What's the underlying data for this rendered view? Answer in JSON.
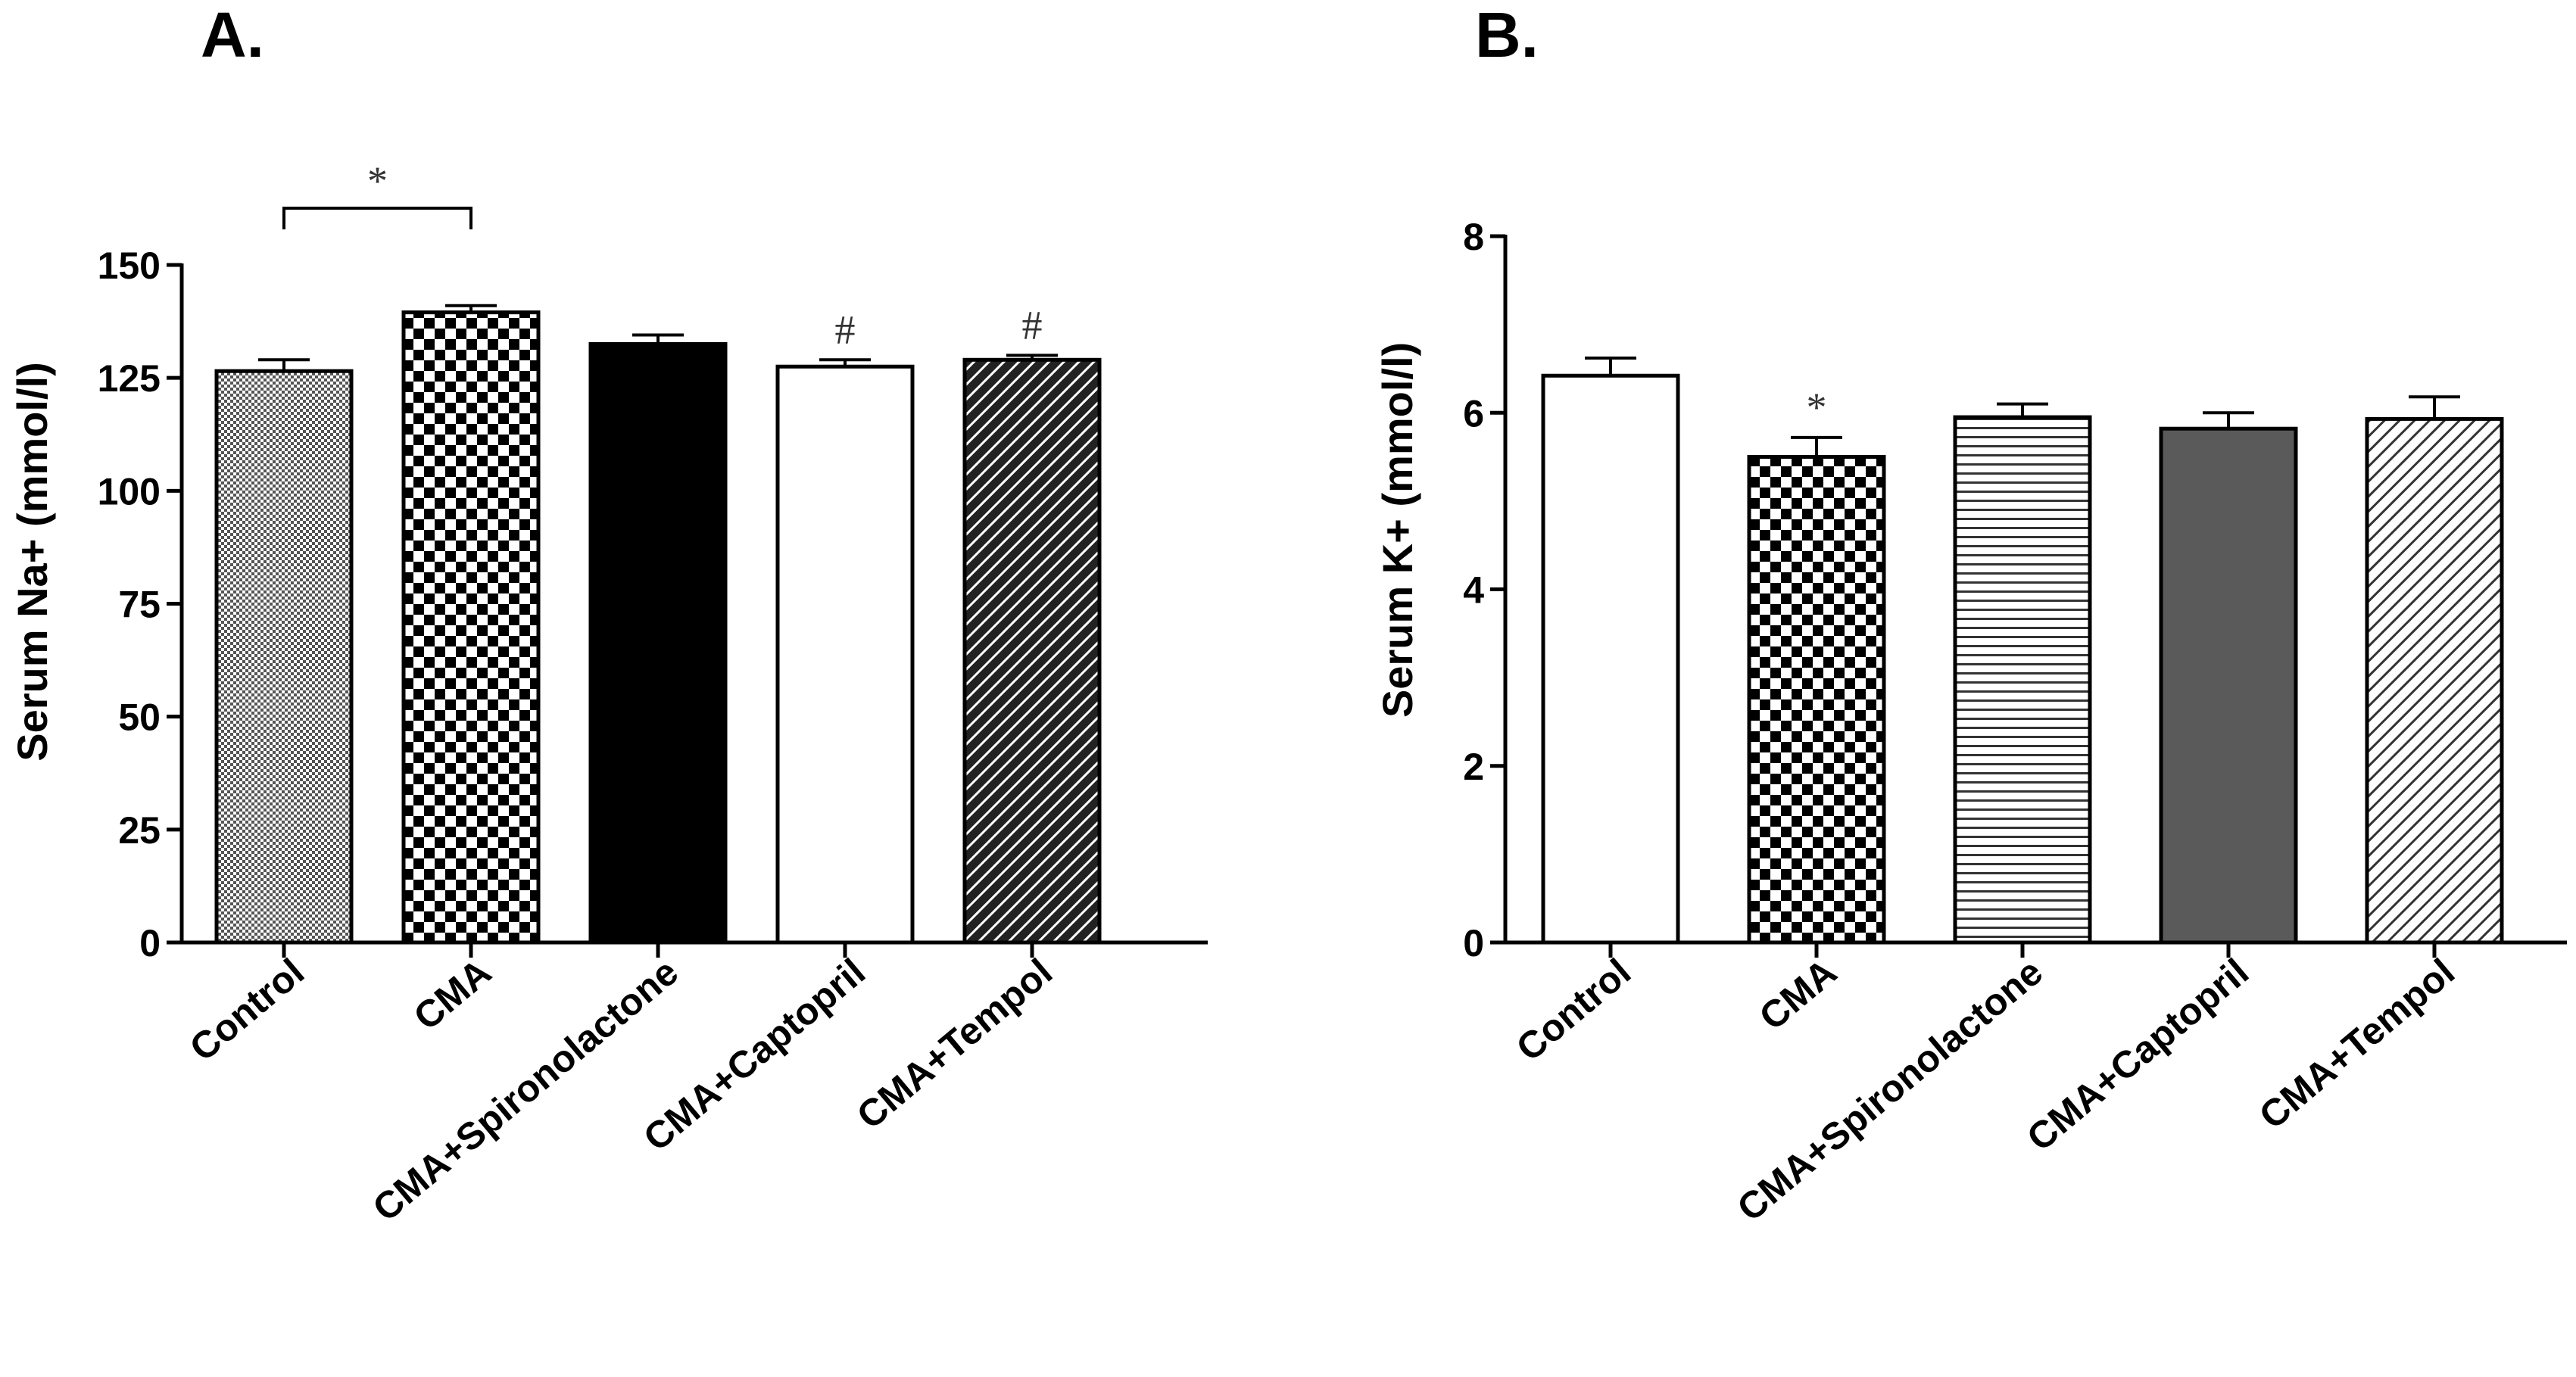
{
  "chart_data": [
    {
      "panel": "A.",
      "type": "bar",
      "ylabel": "Serum Na+ (mmol/l)",
      "ylim": [
        0,
        150
      ],
      "yticks": [
        0,
        25,
        50,
        75,
        100,
        125,
        150
      ],
      "categories": [
        "Control",
        "CMA",
        "CMA+Spironolactone",
        "CMA+Captopril",
        "CMA+Tempol"
      ],
      "values": [
        126.5,
        139.5,
        132.5,
        127.5,
        129.0
      ],
      "errors": [
        2.5,
        1.5,
        2.0,
        1.5,
        1.0
      ],
      "fills": [
        "dots",
        "checker",
        "solid-black",
        "white",
        "diag-dark"
      ],
      "annotations": [
        {
          "type": "bracket",
          "from": 0,
          "to": 1,
          "text": "*"
        },
        {
          "type": "label",
          "bar": 3,
          "text": "#"
        },
        {
          "type": "label",
          "bar": 4,
          "text": "#"
        }
      ]
    },
    {
      "panel": "B.",
      "type": "bar",
      "ylabel": "Serum K+ (mmol/l)",
      "ylim": [
        0,
        8
      ],
      "yticks": [
        0,
        2,
        4,
        6,
        8
      ],
      "categories": [
        "Control",
        "CMA",
        "CMA+Spironolactone",
        "CMA+Captopril",
        "CMA+Tempol"
      ],
      "values": [
        6.42,
        5.5,
        5.95,
        5.82,
        5.93
      ],
      "errors": [
        0.2,
        0.22,
        0.15,
        0.18,
        0.25
      ],
      "fills": [
        "white",
        "checker",
        "hlines",
        "solid-gray",
        "diag-light"
      ],
      "annotations": [
        {
          "type": "label",
          "bar": 1,
          "text": "*"
        }
      ]
    }
  ]
}
